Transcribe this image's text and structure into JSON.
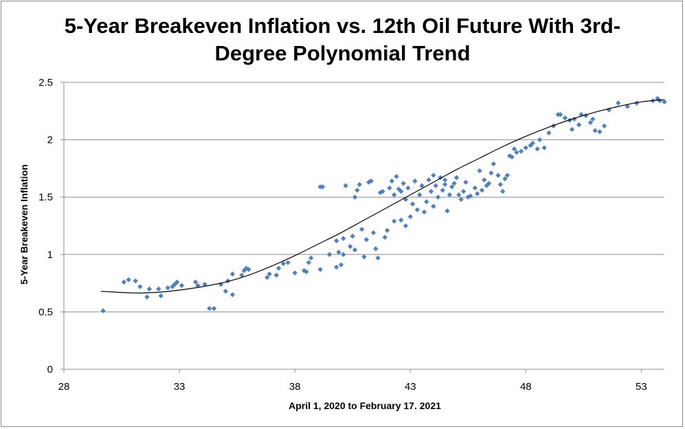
{
  "chart_data": {
    "type": "scatter",
    "title_lines": [
      "5-Year Breakeven Inflation vs. 12th Oil Future With 3rd-",
      "Degree Polynomial Trend"
    ],
    "xlabel": "April 1, 2020 to February 17. 2021",
    "ylabel": "5-Year Breakeven Inflation",
    "xlim": [
      28,
      54
    ],
    "ylim": [
      0,
      2.5
    ],
    "x_ticks": [
      "28",
      "33",
      "38",
      "43",
      "48",
      "53"
    ],
    "y_ticks": [
      "0",
      "0.5",
      "1",
      "1.5",
      "2",
      "2.5"
    ],
    "grid": "horizontal",
    "legend": "none",
    "marker_color": "#4f81bd",
    "trend_color": "#000000",
    "trendline": {
      "type": "polynomial-3",
      "points": [
        [
          29.6,
          0.68
        ],
        [
          31.0,
          0.665
        ],
        [
          32.0,
          0.67
        ],
        [
          33.0,
          0.69
        ],
        [
          34.0,
          0.72
        ],
        [
          35.0,
          0.76
        ],
        [
          36.0,
          0.82
        ],
        [
          37.0,
          0.9
        ],
        [
          38.0,
          0.99
        ],
        [
          39.0,
          1.09
        ],
        [
          40.0,
          1.19
        ],
        [
          41.0,
          1.3
        ],
        [
          42.0,
          1.41
        ],
        [
          43.0,
          1.52
        ],
        [
          44.0,
          1.63
        ],
        [
          45.0,
          1.74
        ],
        [
          46.0,
          1.84
        ],
        [
          47.0,
          1.94
        ],
        [
          48.0,
          2.03
        ],
        [
          49.0,
          2.11
        ],
        [
          50.0,
          2.18
        ],
        [
          51.0,
          2.24
        ],
        [
          52.0,
          2.29
        ],
        [
          53.0,
          2.33
        ],
        [
          54.0,
          2.35
        ]
      ]
    },
    "series": [
      {
        "points": [
          [
            29.7,
            0.51
          ],
          [
            30.6,
            0.76
          ],
          [
            30.8,
            0.78
          ],
          [
            31.1,
            0.77
          ],
          [
            31.3,
            0.72
          ],
          [
            31.6,
            0.63
          ],
          [
            31.7,
            0.7
          ],
          [
            32.1,
            0.7
          ],
          [
            32.2,
            0.64
          ],
          [
            32.5,
            0.71
          ],
          [
            32.7,
            0.72
          ],
          [
            32.8,
            0.74
          ],
          [
            32.9,
            0.76
          ],
          [
            33.1,
            0.73
          ],
          [
            33.7,
            0.76
          ],
          [
            33.8,
            0.73
          ],
          [
            34.1,
            0.74
          ],
          [
            34.3,
            0.53
          ],
          [
            34.5,
            0.53
          ],
          [
            34.8,
            0.74
          ],
          [
            35.0,
            0.68
          ],
          [
            35.1,
            0.77
          ],
          [
            35.3,
            0.83
          ],
          [
            35.3,
            0.65
          ],
          [
            35.7,
            0.82
          ],
          [
            35.8,
            0.86
          ],
          [
            35.9,
            0.88
          ],
          [
            36.0,
            0.87
          ],
          [
            36.8,
            0.8
          ],
          [
            36.9,
            0.83
          ],
          [
            37.2,
            0.82
          ],
          [
            37.3,
            0.88
          ],
          [
            37.5,
            0.92
          ],
          [
            37.7,
            0.93
          ],
          [
            38.0,
            0.84
          ],
          [
            38.4,
            0.86
          ],
          [
            38.5,
            0.85
          ],
          [
            38.6,
            0.93
          ],
          [
            38.7,
            0.97
          ],
          [
            39.1,
            0.87
          ],
          [
            39.1,
            1.59
          ],
          [
            39.2,
            1.59
          ],
          [
            39.5,
            1.0
          ],
          [
            39.8,
            1.12
          ],
          [
            39.8,
            0.89
          ],
          [
            39.9,
            1.02
          ],
          [
            40.0,
            0.91
          ],
          [
            40.1,
            1.0
          ],
          [
            40.1,
            1.14
          ],
          [
            40.2,
            1.6
          ],
          [
            40.4,
            1.07
          ],
          [
            40.5,
            1.16
          ],
          [
            40.6,
            1.04
          ],
          [
            40.6,
            1.5
          ],
          [
            40.7,
            1.56
          ],
          [
            40.8,
            1.61
          ],
          [
            40.9,
            1.22
          ],
          [
            41.0,
            0.98
          ],
          [
            41.1,
            1.13
          ],
          [
            41.2,
            1.63
          ],
          [
            41.3,
            1.64
          ],
          [
            41.4,
            1.19
          ],
          [
            41.5,
            1.05
          ],
          [
            41.6,
            0.97
          ],
          [
            41.7,
            1.54
          ],
          [
            41.8,
            1.55
          ],
          [
            41.9,
            1.15
          ],
          [
            42.0,
            1.21
          ],
          [
            42.1,
            1.58
          ],
          [
            42.2,
            1.64
          ],
          [
            42.3,
            1.29
          ],
          [
            42.3,
            1.52
          ],
          [
            42.4,
            1.68
          ],
          [
            42.5,
            1.57
          ],
          [
            42.6,
            1.3
          ],
          [
            42.6,
            1.55
          ],
          [
            42.7,
            1.62
          ],
          [
            42.8,
            1.25
          ],
          [
            42.8,
            1.48
          ],
          [
            42.9,
            1.58
          ],
          [
            43.0,
            1.33
          ],
          [
            43.1,
            1.44
          ],
          [
            43.2,
            1.64
          ],
          [
            43.3,
            1.39
          ],
          [
            43.4,
            1.52
          ],
          [
            43.5,
            1.6
          ],
          [
            43.6,
            1.37
          ],
          [
            43.7,
            1.46
          ],
          [
            43.8,
            1.65
          ],
          [
            43.9,
            1.55
          ],
          [
            44.0,
            1.69
          ],
          [
            44.0,
            1.42
          ],
          [
            44.1,
            1.6
          ],
          [
            44.2,
            1.5
          ],
          [
            44.3,
            1.67
          ],
          [
            44.4,
            1.56
          ],
          [
            44.5,
            1.61
          ],
          [
            44.5,
            1.65
          ],
          [
            44.6,
            1.38
          ],
          [
            44.7,
            1.52
          ],
          [
            44.8,
            1.59
          ],
          [
            44.9,
            1.62
          ],
          [
            45.0,
            1.67
          ],
          [
            45.1,
            1.52
          ],
          [
            45.2,
            1.48
          ],
          [
            45.3,
            1.55
          ],
          [
            45.4,
            1.63
          ],
          [
            45.5,
            1.5
          ],
          [
            45.6,
            1.51
          ],
          [
            45.8,
            1.58
          ],
          [
            45.9,
            1.53
          ],
          [
            46.0,
            1.73
          ],
          [
            46.1,
            1.56
          ],
          [
            46.2,
            1.65
          ],
          [
            46.3,
            1.6
          ],
          [
            46.4,
            1.62
          ],
          [
            46.5,
            1.71
          ],
          [
            46.6,
            1.79
          ],
          [
            46.8,
            1.69
          ],
          [
            46.9,
            1.61
          ],
          [
            47.0,
            1.55
          ],
          [
            47.1,
            1.66
          ],
          [
            47.2,
            1.69
          ],
          [
            47.3,
            1.86
          ],
          [
            47.4,
            1.85
          ],
          [
            47.5,
            1.92
          ],
          [
            47.6,
            1.89
          ],
          [
            47.8,
            1.9
          ],
          [
            48.0,
            1.93
          ],
          [
            48.2,
            1.95
          ],
          [
            48.3,
            1.97
          ],
          [
            48.5,
            1.92
          ],
          [
            48.6,
            2.0
          ],
          [
            48.8,
            1.93
          ],
          [
            49.0,
            2.06
          ],
          [
            49.2,
            2.12
          ],
          [
            49.4,
            2.22
          ],
          [
            49.5,
            2.22
          ],
          [
            49.7,
            2.19
          ],
          [
            49.9,
            2.17
          ],
          [
            50.0,
            2.09
          ],
          [
            50.1,
            2.18
          ],
          [
            50.3,
            2.13
          ],
          [
            50.4,
            2.22
          ],
          [
            50.6,
            2.21
          ],
          [
            50.8,
            2.15
          ],
          [
            50.9,
            2.18
          ],
          [
            51.0,
            2.08
          ],
          [
            51.2,
            2.07
          ],
          [
            51.4,
            2.12
          ],
          [
            51.6,
            2.26
          ],
          [
            52.0,
            2.32
          ],
          [
            52.4,
            2.29
          ],
          [
            52.8,
            2.32
          ],
          [
            53.5,
            2.34
          ],
          [
            53.7,
            2.36
          ],
          [
            53.8,
            2.34
          ],
          [
            54.0,
            2.33
          ]
        ]
      }
    ]
  }
}
